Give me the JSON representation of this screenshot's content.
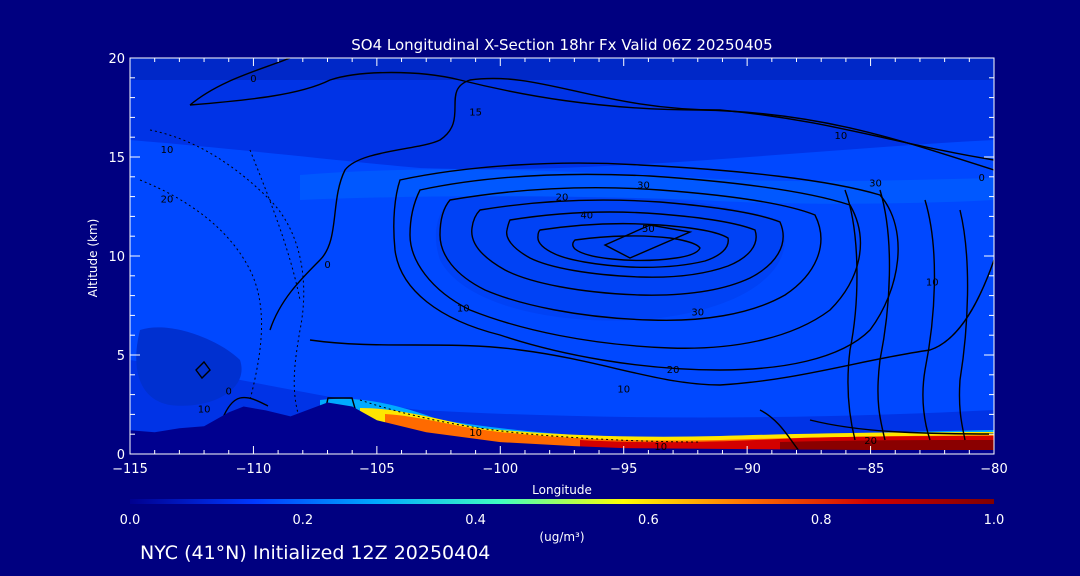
{
  "chart_data": {
    "type": "heatmap",
    "title": "SO4 Longitudinal X-Section 18hr  Fx Valid 06Z 20250405",
    "xlabel": "Longitude",
    "ylabel": "Altitude (km)",
    "xlim": [
      -115,
      -80
    ],
    "ylim": [
      0,
      20
    ],
    "x_ticks": [
      -115,
      -110,
      -105,
      -100,
      -95,
      -90,
      -85,
      -80
    ],
    "x_tick_labels": [
      "−115",
      "−110",
      "−105",
      "−100",
      "−95",
      "−90",
      "−85",
      "−80"
    ],
    "y_ticks": [
      0,
      5,
      10,
      15,
      20
    ],
    "colorbar": {
      "min": 0.0,
      "max": 1.0,
      "ticks": [
        "0.0",
        "0.2",
        "0.4",
        "0.6",
        "0.8",
        "1.0"
      ],
      "units": "(ug/m³)",
      "colors": [
        "#00008f",
        "#0038ff",
        "#00aaff",
        "#40ffc0",
        "#ffff00",
        "#ff7000",
        "#d00000",
        "#800000"
      ]
    },
    "terrain": [
      {
        "x": -115.0,
        "y": 1.2
      },
      {
        "x": -114.0,
        "y": 1.1
      },
      {
        "x": -113.0,
        "y": 1.3
      },
      {
        "x": -112.0,
        "y": 1.4
      },
      {
        "x": -111.0,
        "y": 2.1
      },
      {
        "x": -110.4,
        "y": 2.4
      },
      {
        "x": -109.5,
        "y": 2.2
      },
      {
        "x": -108.5,
        "y": 1.9
      },
      {
        "x": -107.0,
        "y": 2.6
      },
      {
        "x": -106.0,
        "y": 2.4
      },
      {
        "x": -105.0,
        "y": 1.7
      },
      {
        "x": -103.0,
        "y": 1.1
      },
      {
        "x": -100.0,
        "y": 0.6
      },
      {
        "x": -97.0,
        "y": 0.4
      },
      {
        "x": -95.0,
        "y": 0.3
      },
      {
        "x": -90.0,
        "y": 0.25
      },
      {
        "x": -85.0,
        "y": 0.2
      },
      {
        "x": -80.0,
        "y": 0.2
      }
    ],
    "contour_labels": [
      {
        "text": "0",
        "x": -110.0,
        "y": 18.8
      },
      {
        "text": "0",
        "x": -111.0,
        "y": 3.0
      },
      {
        "text": "0",
        "x": -107.0,
        "y": 9.4
      },
      {
        "text": "0",
        "x": -80.5,
        "y": 13.8
      },
      {
        "text": "10",
        "x": -112.0,
        "y": 2.1
      },
      {
        "text": "10",
        "x": -113.5,
        "y": 15.2
      },
      {
        "text": "10",
        "x": -101.5,
        "y": 7.2
      },
      {
        "text": "10",
        "x": -101.0,
        "y": 0.9
      },
      {
        "text": "10",
        "x": -95.0,
        "y": 3.1
      },
      {
        "text": "10",
        "x": -93.5,
        "y": 0.2
      },
      {
        "text": "10",
        "x": -86.2,
        "y": 15.9
      },
      {
        "text": "10",
        "x": -82.5,
        "y": 8.5
      },
      {
        "text": "15",
        "x": -101.0,
        "y": 17.1
      },
      {
        "text": "20",
        "x": -97.5,
        "y": 12.8
      },
      {
        "text": "20",
        "x": -93.0,
        "y": 4.1
      },
      {
        "text": "20",
        "x": -113.5,
        "y": 12.7
      },
      {
        "text": "20",
        "x": -85.0,
        "y": 0.5
      },
      {
        "text": "30",
        "x": -92.0,
        "y": 7.0
      },
      {
        "text": "30",
        "x": -94.2,
        "y": 13.4
      },
      {
        "text": "30",
        "x": -84.8,
        "y": 13.5
      },
      {
        "text": "40",
        "x": -96.5,
        "y": 11.9
      },
      {
        "text": "50",
        "x": -94.0,
        "y": 11.2
      }
    ]
  },
  "footer": "NYC (41°N) Initialized 12Z 20250404"
}
